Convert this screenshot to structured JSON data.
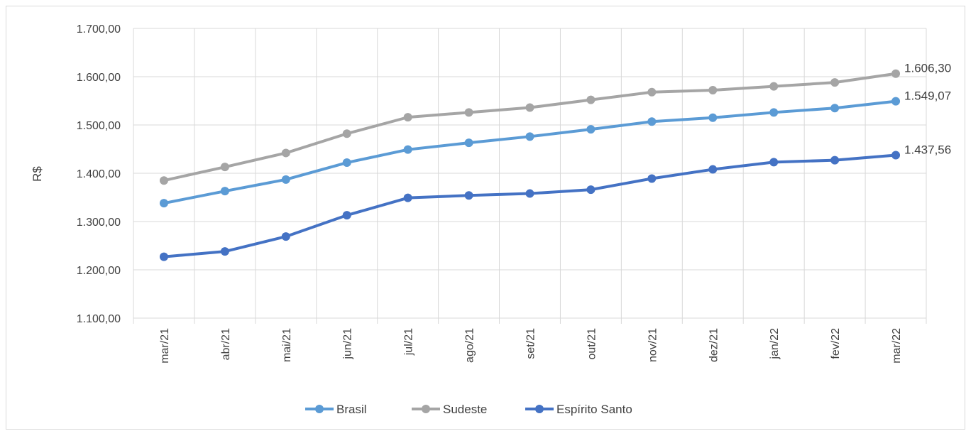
{
  "chart_data": {
    "type": "line",
    "title": "",
    "xlabel": "",
    "ylabel": "R$",
    "ylim": [
      1100,
      1700
    ],
    "yticks": [
      1100,
      1200,
      1300,
      1400,
      1500,
      1600,
      1700
    ],
    "ytick_labels": [
      "1.100,00",
      "1.200,00",
      "1.300,00",
      "1.400,00",
      "1.500,00",
      "1.600,00",
      "1.700,00"
    ],
    "grid": true,
    "legend_position": "bottom",
    "categories": [
      "mar/21",
      "abr/21",
      "mai/21",
      "jun/21",
      "jul/21",
      "ago/21",
      "set/21",
      "out/21",
      "nov/21",
      "dez/21",
      "jan/22",
      "fev/22",
      "mar/22"
    ],
    "series": [
      {
        "name": "Brasil",
        "color": "#5b9bd5",
        "values": [
          1338,
          1363,
          1387,
          1422,
          1449,
          1463,
          1476,
          1491,
          1507,
          1515,
          1526,
          1535,
          1549.07
        ],
        "end_label": "1.549,07"
      },
      {
        "name": "Sudeste",
        "color": "#a5a5a5",
        "values": [
          1385,
          1413,
          1442,
          1482,
          1516,
          1526,
          1536,
          1552,
          1568,
          1572,
          1580,
          1588,
          1606.3
        ],
        "end_label": "1.606,30"
      },
      {
        "name": "Espírito Santo",
        "color": "#4472c4",
        "values": [
          1227,
          1238,
          1269,
          1313,
          1349,
          1354,
          1358,
          1366,
          1389,
          1408,
          1423,
          1427,
          1437.56
        ],
        "end_label": "1.437,56"
      }
    ]
  }
}
